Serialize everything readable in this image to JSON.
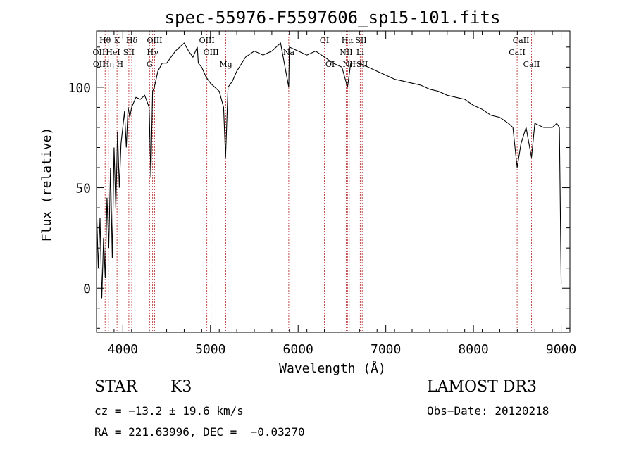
{
  "chart_data": {
    "type": "line",
    "title": "spec-55976-F5597606_sp15-101.fits",
    "xlabel": "Wavelength (Å)",
    "ylabel": "Flux (relative)",
    "xlim": [
      3700,
      9100
    ],
    "ylim": [
      -22,
      128
    ],
    "x_ticks": [
      4000,
      5000,
      6000,
      7000,
      8000,
      9000
    ],
    "y_ticks": [
      0,
      50,
      100
    ],
    "grid": false,
    "legend": "none",
    "series": [
      {
        "color": "#000000",
        "x": [
          3700,
          3720,
          3740,
          3760,
          3780,
          3800,
          3820,
          3840,
          3860,
          3880,
          3900,
          3920,
          3940,
          3960,
          3980,
          4000,
          4020,
          4040,
          4060,
          4080,
          4100,
          4150,
          4200,
          4250,
          4300,
          4320,
          4340,
          4360,
          4400,
          4450,
          4500,
          4550,
          4600,
          4650,
          4700,
          4750,
          4800,
          4850,
          4861,
          4900,
          4950,
          5000,
          5050,
          5100,
          5150,
          5172,
          5200,
          5250,
          5300,
          5400,
          5500,
          5600,
          5700,
          5800,
          5893,
          5900,
          6000,
          6100,
          6200,
          6300,
          6400,
          6500,
          6563,
          6600,
          6700,
          6800,
          6900,
          7000,
          7100,
          7200,
          7300,
          7400,
          7500,
          7600,
          7700,
          7800,
          7900,
          8000,
          8100,
          8200,
          8300,
          8400,
          8450,
          8498,
          8542,
          8600,
          8662,
          8700,
          8800,
          8900,
          8950,
          8980,
          9000
        ],
        "y": [
          40,
          10,
          35,
          -5,
          25,
          5,
          45,
          20,
          60,
          15,
          70,
          40,
          78,
          50,
          72,
          80,
          88,
          70,
          90,
          85,
          90,
          95,
          94,
          96,
          90,
          55,
          98,
          100,
          108,
          112,
          112,
          115,
          118,
          120,
          122,
          118,
          115,
          120,
          112,
          110,
          105,
          102,
          100,
          98,
          90,
          65,
          100,
          103,
          108,
          115,
          118,
          116,
          118,
          122,
          100,
          120,
          118,
          116,
          118,
          115,
          112,
          110,
          100,
          112,
          112,
          110,
          108,
          106,
          104,
          103,
          102,
          101,
          99,
          98,
          96,
          95,
          94,
          91,
          89,
          86,
          85,
          82,
          80,
          60,
          72,
          80,
          65,
          82,
          80,
          80,
          82,
          80,
          2
        ]
      }
    ],
    "lines": [
      {
        "label": "Hθ",
        "wave": 3798,
        "row": 0
      },
      {
        "label": "OII",
        "wave": 3727,
        "row": 1
      },
      {
        "label": "OII",
        "wave": 3729,
        "row": 2
      },
      {
        "label": "Hη",
        "wave": 3835,
        "row": 2
      },
      {
        "label": "HeI",
        "wave": 3889,
        "row": 1
      },
      {
        "label": "K",
        "wave": 3934,
        "row": 0
      },
      {
        "label": "SII",
        "wave": 4069,
        "row": 1
      },
      {
        "label": "H",
        "wave": 3968,
        "row": 2
      },
      {
        "label": "Hδ",
        "wave": 4102,
        "row": 0
      },
      {
        "label": "OIII",
        "wave": 4363,
        "row": 0
      },
      {
        "label": "Hγ",
        "wave": 4340,
        "row": 1
      },
      {
        "label": "G",
        "wave": 4305,
        "row": 2
      },
      {
        "label": "OIII",
        "wave": 4959,
        "row": 0
      },
      {
        "label": "OIII",
        "wave": 5007,
        "row": 1
      },
      {
        "label": "Mg",
        "wave": 5175,
        "row": 2
      },
      {
        "label": "Na",
        "wave": 5893,
        "row": 1
      },
      {
        "label": "OI",
        "wave": 6300,
        "row": 0
      },
      {
        "label": "OI",
        "wave": 6364,
        "row": 2
      },
      {
        "label": "Hα",
        "wave": 6563,
        "row": 0
      },
      {
        "label": "NII",
        "wave": 6548,
        "row": 1
      },
      {
        "label": "NII",
        "wave": 6583,
        "row": 2
      },
      {
        "label": "SII",
        "wave": 6717,
        "row": 0
      },
      {
        "label": "Li",
        "wave": 6708,
        "row": 1
      },
      {
        "label": "SII",
        "wave": 6731,
        "row": 2
      },
      {
        "label": "CaII",
        "wave": 8542,
        "row": 0
      },
      {
        "label": "CaII",
        "wave": 8498,
        "row": 1
      },
      {
        "label": "CaII",
        "wave": 8662,
        "row": 2
      }
    ]
  },
  "info": {
    "object_type": "STAR",
    "subclass": "K3",
    "survey": "LAMOST DR3",
    "cz": "cz = −13.2 ± 19.6 km/s",
    "obs_date": "Obs−Date: 20120218",
    "coords": "RA = 221.63996, DEC =  −0.03270"
  }
}
